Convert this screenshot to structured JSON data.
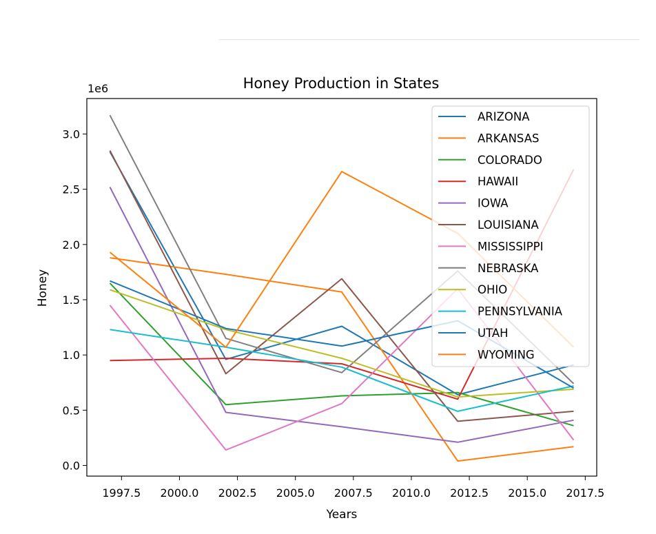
{
  "header": {
    "title": ""
  },
  "chart_data": {
    "type": "line",
    "title": "Honey Production in States",
    "xlabel": "Years",
    "ylabel": "Honey",
    "y_scale_label": "1e6",
    "xlim": [
      1996.5,
      2018.0
    ],
    "ylim": [
      -0.1,
      3.3
    ],
    "xticks": [
      1997.5,
      2000.0,
      2002.5,
      2005.0,
      2007.5,
      2010.0,
      2012.5,
      2015.0,
      2017.5
    ],
    "xtick_labels": [
      "1997.5",
      "2000.0",
      "2002.5",
      "2005.0",
      "2007.5",
      "2010.0",
      "2012.5",
      "2015.0",
      "2017.5"
    ],
    "yticks": [
      0.0,
      0.5,
      1.0,
      1.5,
      2.0,
      2.5,
      3.0
    ],
    "ytick_labels": [
      "0.0",
      "0.5",
      "1.0",
      "1.5",
      "2.0",
      "2.5",
      "3.0"
    ],
    "x": [
      1997,
      2002,
      2007,
      2012,
      2017
    ],
    "grid": false,
    "legend_position": "top-right",
    "series": [
      {
        "name": "ARIZONA",
        "color": "#1f77b4",
        "values": [
          2.84,
          0.96,
          1.26,
          0.64,
          0.91
        ]
      },
      {
        "name": "ARKANSAS",
        "color": "#ff7f0e",
        "values": [
          1.88,
          1.73,
          1.57,
          0.04,
          0.17
        ]
      },
      {
        "name": "COLORADO",
        "color": "#2ca02c",
        "values": [
          1.65,
          0.55,
          0.63,
          0.66,
          0.36
        ]
      },
      {
        "name": "HAWAII",
        "color": "#d62728",
        "values": [
          0.95,
          0.97,
          0.92,
          0.6,
          2.68
        ]
      },
      {
        "name": "IOWA",
        "color": "#9467bd",
        "values": [
          2.52,
          0.48,
          0.35,
          0.21,
          0.41
        ]
      },
      {
        "name": "LOUISIANA",
        "color": "#8c564b",
        "values": [
          2.85,
          0.83,
          1.69,
          0.4,
          0.49
        ]
      },
      {
        "name": "MISSISSIPPI",
        "color": "#e377c2",
        "values": [
          1.45,
          0.14,
          0.56,
          1.6,
          0.23
        ]
      },
      {
        "name": "NEBRASKA",
        "color": "#7f7f7f",
        "values": [
          3.17,
          1.15,
          0.84,
          1.76,
          0.74
        ]
      },
      {
        "name": "OHIO",
        "color": "#bcbd22",
        "values": [
          1.59,
          1.23,
          0.97,
          0.62,
          0.69
        ]
      },
      {
        "name": "PENNSYLVANIA",
        "color": "#17becf",
        "values": [
          1.23,
          1.07,
          0.89,
          0.49,
          0.72
        ]
      },
      {
        "name": "UTAH",
        "color": "#1f77b4",
        "values": [
          1.67,
          1.24,
          1.08,
          1.31,
          0.7
        ]
      },
      {
        "name": "WYOMING",
        "color": "#ff7f0e",
        "values": [
          1.93,
          1.07,
          2.66,
          2.1,
          1.07
        ]
      }
    ]
  }
}
